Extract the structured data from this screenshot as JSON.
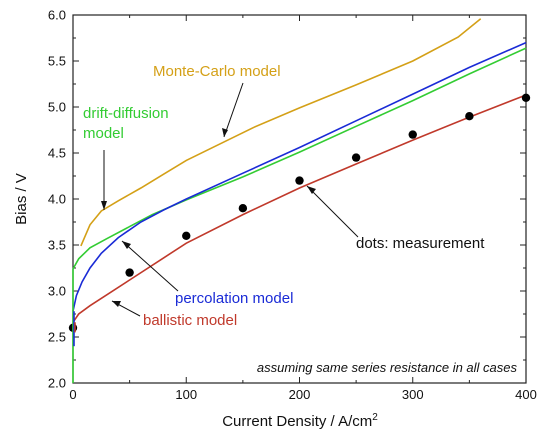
{
  "chart_data": {
    "type": "line",
    "xlabel": "Current Density / A/cm",
    "xlabel_sup": "2",
    "ylabel": "Bias / V",
    "xlim": [
      0,
      400
    ],
    "ylim": [
      2.0,
      6.0
    ],
    "x_ticks": [
      0,
      100,
      200,
      300,
      400
    ],
    "x_tick_labels": [
      "0",
      "100",
      "200",
      "300",
      "400"
    ],
    "y_ticks": [
      2.0,
      2.5,
      3.0,
      3.5,
      4.0,
      4.5,
      5.0,
      5.5,
      6.0
    ],
    "y_tick_labels": [
      "2.0",
      "2.5",
      "3.0",
      "3.5",
      "4.0",
      "4.5",
      "5.0",
      "5.5",
      "6.0"
    ],
    "grid": false,
    "series": [
      {
        "name": "Monte-Carlo model",
        "color": "#d4a017",
        "style": "line",
        "points": [
          [
            7,
            3.49
          ],
          [
            15,
            3.72
          ],
          [
            25,
            3.87
          ],
          [
            40,
            3.98
          ],
          [
            60,
            4.12
          ],
          [
            80,
            4.27
          ],
          [
            100,
            4.42
          ],
          [
            130,
            4.6
          ],
          [
            160,
            4.78
          ],
          [
            200,
            4.99
          ],
          [
            250,
            5.24
          ],
          [
            300,
            5.5
          ],
          [
            340,
            5.76
          ],
          [
            360,
            5.96
          ]
        ]
      },
      {
        "name": "drift-diffusion model",
        "color": "#33cc33",
        "style": "line",
        "points": [
          [
            0,
            3.24
          ],
          [
            5,
            3.35
          ],
          [
            15,
            3.47
          ],
          [
            30,
            3.57
          ],
          [
            50,
            3.7
          ],
          [
            70,
            3.83
          ],
          [
            100,
            3.99
          ],
          [
            150,
            4.24
          ],
          [
            200,
            4.51
          ],
          [
            250,
            4.79
          ],
          [
            300,
            5.07
          ],
          [
            350,
            5.36
          ],
          [
            400,
            5.64
          ]
        ]
      },
      {
        "name": "percolation model",
        "color": "#1a2bd6",
        "style": "line",
        "points": [
          [
            0,
            2.78
          ],
          [
            3,
            2.95
          ],
          [
            8,
            3.1
          ],
          [
            15,
            3.25
          ],
          [
            25,
            3.41
          ],
          [
            40,
            3.58
          ],
          [
            60,
            3.75
          ],
          [
            80,
            3.88
          ],
          [
            100,
            4.0
          ],
          [
            150,
            4.28
          ],
          [
            200,
            4.56
          ],
          [
            250,
            4.85
          ],
          [
            300,
            5.14
          ],
          [
            350,
            5.43
          ],
          [
            400,
            5.7
          ]
        ]
      },
      {
        "name": "ballistic model",
        "color": "#c0392b",
        "style": "line",
        "points": [
          [
            0,
            2.66
          ],
          [
            5,
            2.75
          ],
          [
            15,
            2.84
          ],
          [
            30,
            2.96
          ],
          [
            50,
            3.12
          ],
          [
            80,
            3.36
          ],
          [
            100,
            3.52
          ],
          [
            150,
            3.83
          ],
          [
            200,
            4.12
          ],
          [
            250,
            4.38
          ],
          [
            300,
            4.64
          ],
          [
            350,
            4.89
          ],
          [
            400,
            5.13
          ]
        ]
      },
      {
        "name": "dots: measurement",
        "color": "#000000",
        "style": "scatter",
        "points": [
          [
            0,
            2.6
          ],
          [
            50,
            3.2
          ],
          [
            100,
            3.6
          ],
          [
            150,
            3.9
          ],
          [
            200,
            4.2
          ],
          [
            250,
            4.45
          ],
          [
            300,
            4.7
          ],
          [
            350,
            4.9
          ],
          [
            400,
            5.1
          ]
        ]
      }
    ],
    "annotations": {
      "monte_carlo": "Monte-Carlo model",
      "drift_line1": "drift-diffusion",
      "drift_line2": "model",
      "percolation": "percolation model",
      "ballistic": "ballistic model",
      "measurement": "dots: measurement",
      "note": "assuming same series resistance in all cases"
    }
  }
}
